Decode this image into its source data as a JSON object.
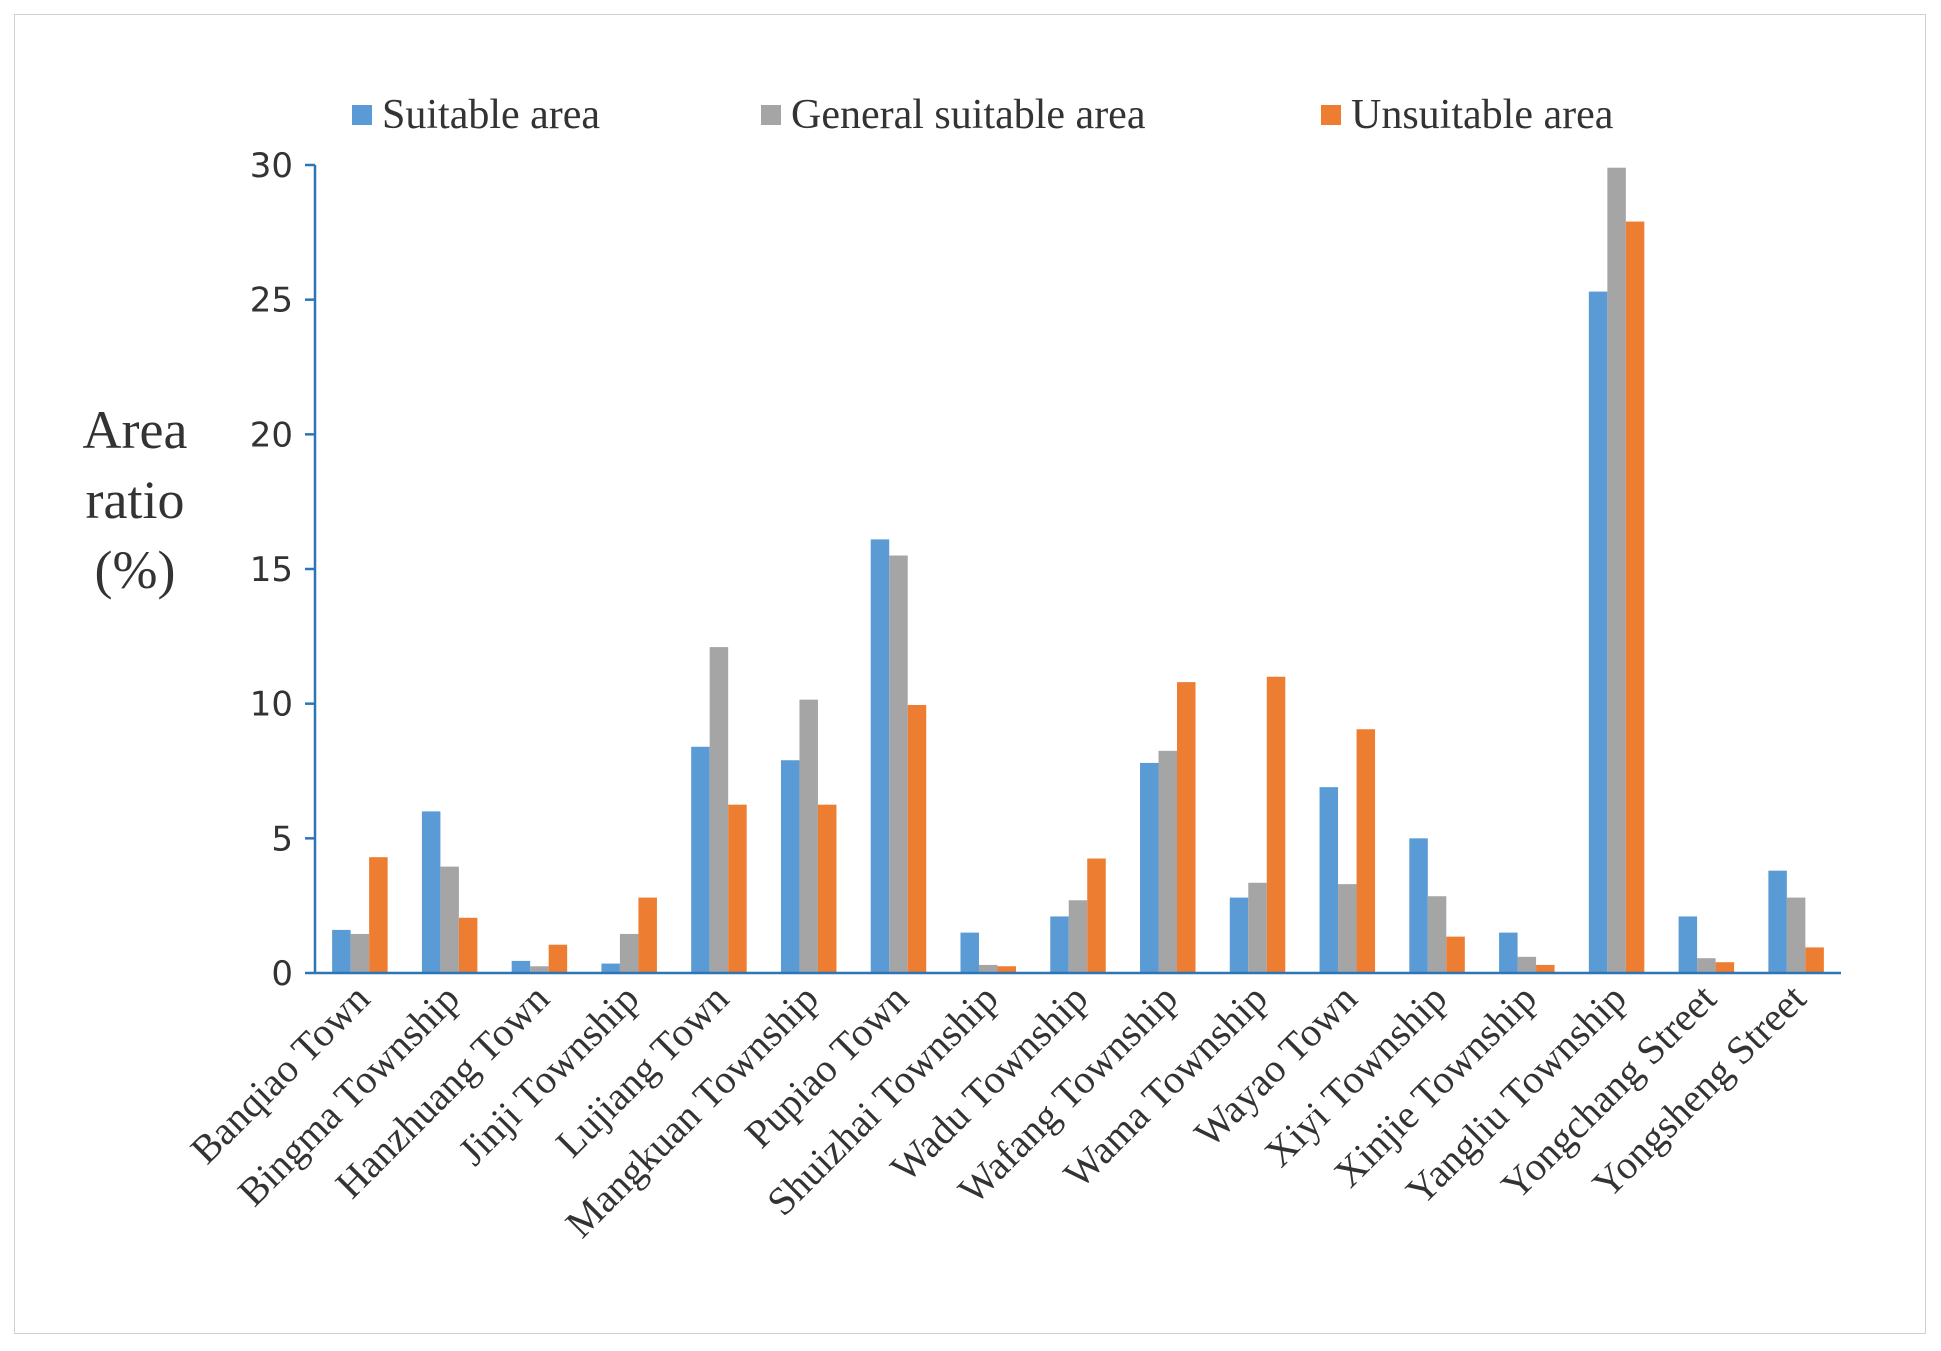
{
  "chart_data": {
    "type": "bar",
    "title": "",
    "xlabel": "",
    "ylabel": "Area ratio (%)",
    "ylabel_lines": [
      "Area",
      "ratio",
      "(%)"
    ],
    "ylim": [
      0,
      30
    ],
    "yticks": [
      0,
      5,
      10,
      15,
      20,
      25,
      30
    ],
    "grid": false,
    "legend": "top",
    "categories": [
      "Banqiao Town",
      "Bingma Township",
      "Hanzhuang Town",
      "Jinji Township",
      "Lujiang Town",
      "Mangkuan  Township",
      "Pupiao Town",
      "Shuizhai Township",
      "Wadu Township",
      "Wafang  Township",
      "Wama  Township",
      "Wayao Town",
      "Xiyi Township",
      "Xinjie Township",
      "Yangliu  Township",
      "Yongchang Street",
      "Yongsheng Street"
    ],
    "series": [
      {
        "name": "Suitable area",
        "color": "#5b9bd5",
        "values": [
          1.6,
          6.0,
          0.45,
          0.35,
          8.4,
          7.9,
          16.1,
          1.5,
          2.1,
          7.8,
          2.8,
          6.9,
          5.0,
          1.5,
          25.3,
          2.1,
          3.8
        ]
      },
      {
        "name": "General suitable area",
        "color": "#a5a5a5",
        "values": [
          1.45,
          3.95,
          0.25,
          1.45,
          12.1,
          10.15,
          15.5,
          0.3,
          2.7,
          8.25,
          3.35,
          3.3,
          2.85,
          0.6,
          29.9,
          0.55,
          2.8
        ]
      },
      {
        "name": "Unsuitable area",
        "color": "#ed7d31",
        "values": [
          4.3,
          2.05,
          1.05,
          2.8,
          6.25,
          6.25,
          9.95,
          0.25,
          4.25,
          10.8,
          11.0,
          9.05,
          1.35,
          0.3,
          27.9,
          0.4,
          0.95
        ]
      }
    ]
  }
}
